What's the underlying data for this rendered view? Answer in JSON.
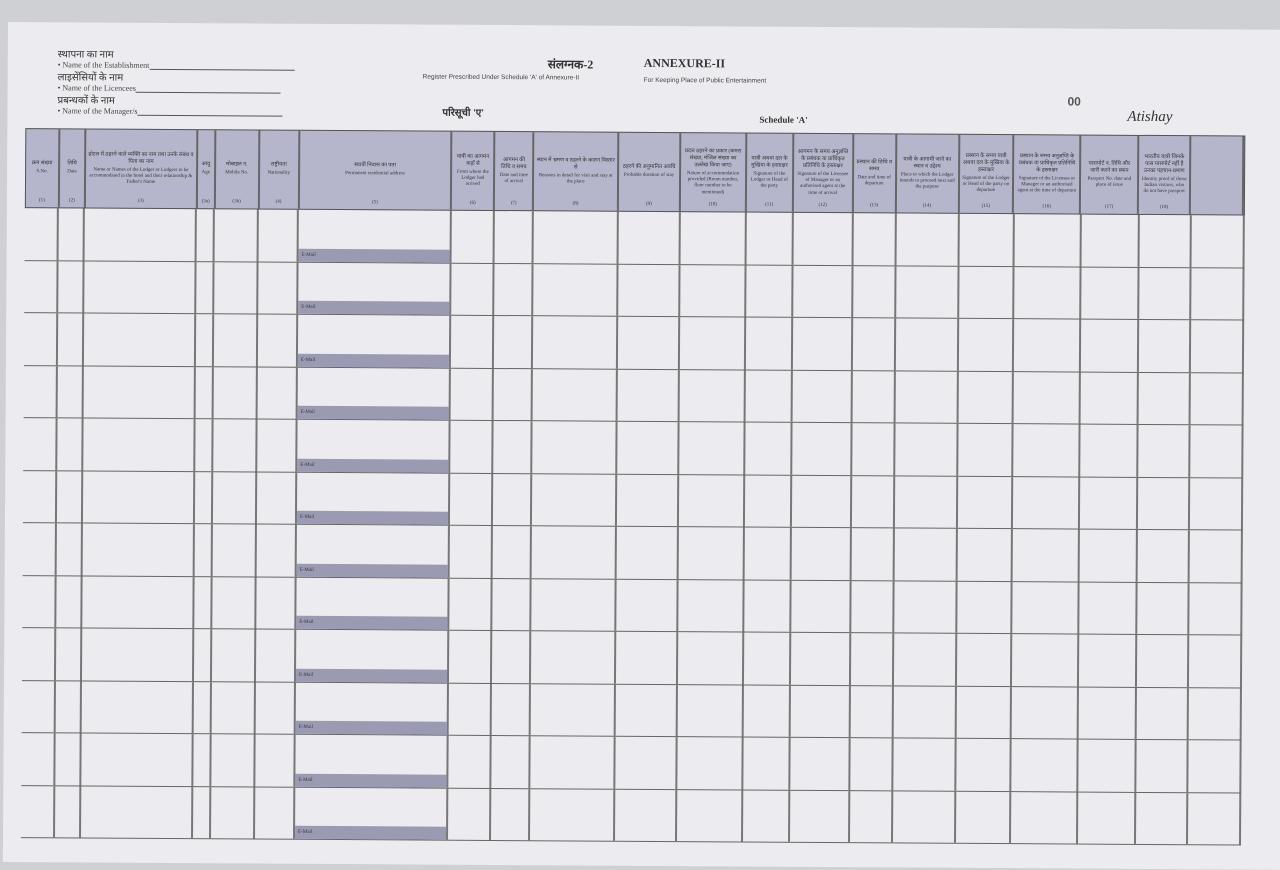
{
  "header": {
    "establishment_hi": "स्थापना का नाम",
    "establishment_en": "• Name of the Establishment",
    "licencees_hi": "लाइसेंसियों के नाम",
    "licencees_en": "• Name of the Licencees",
    "managers_hi": "प्रबन्धकों के नाम",
    "managers_en": "• Name of the Manager/s",
    "annexure_hi": "संलग्नक-2",
    "annexure_en": "ANNEXURE-II",
    "register_subtitle": "Register Prescribed Under Schedule 'A' of Annexure-II",
    "purpose_subtitle": "For Keeping Place of Public Entertainment",
    "schedule_hi": "परिसूची 'ए'",
    "schedule_en": "Schedule 'A'",
    "page_number": "00",
    "brand": "Atishay"
  },
  "columns": [
    {
      "hi": "क्रम संख्या",
      "en": "S.No.",
      "num": "(1)"
    },
    {
      "hi": "तिथि",
      "en": "Date",
      "num": "(2)"
    },
    {
      "hi": "होटल में ठहरने वाले व्यक्ति का नाम तथा उनके संबंध व पिता का नाम",
      "en": "Name or Names of the Lodger or Lodgers to be accommodated in the hotel and their relationship & Father's Name",
      "num": "(3)"
    },
    {
      "hi": "आयु",
      "en": "Age",
      "num": "(3a)"
    },
    {
      "hi": "मोबाइल न.",
      "en": "Mobile No.",
      "num": "(3b)"
    },
    {
      "hi": "राष्ट्रीयता",
      "en": "Nationality",
      "num": "(4)"
    },
    {
      "hi": "स्थायी निवास का पता",
      "en": "Permanent residential address",
      "num": "(5)"
    },
    {
      "hi": "यात्री का आगमन कहाँ से",
      "en": "From where the Lodger had arrived",
      "num": "(6)"
    },
    {
      "hi": "आगमन की तिथि व समय",
      "en": "Date and time of arrival",
      "num": "(7)"
    },
    {
      "hi": "स्थान में भ्रमण व ठहरने के कारण विस्तार से",
      "en": "Reasons in detail for visit and stay at the place",
      "num": "(8)"
    },
    {
      "hi": "ठहरने की अनुमानित अवधि",
      "en": "Probable duration of stay",
      "num": "(9)"
    },
    {
      "hi": "प्रदत्त ठहरने का प्रकार (कमरा संख्या, मंजिल संख्या का उल्लेख किया जाए)",
      "en": "Nature of accommodation provided (Room number, floor number to be mentioned)",
      "num": "(10)"
    },
    {
      "hi": "यात्री अथवा दल के मुखिया के हस्ताक्षर",
      "en": "Signature of the Lodger or Head of the party",
      "num": "(11)"
    },
    {
      "hi": "आगमन के समय अनुज्ञप्ति के प्रबंधक या प्राधिकृत प्रतिनिधि के हस्ताक्षर",
      "en": "Signature of the Licensee of Manager or an authorised agent at the time of arrival",
      "num": "(12)"
    },
    {
      "hi": "प्रस्थान की तिथि व समय",
      "en": "Date and time of departure",
      "num": "(13)"
    },
    {
      "hi": "यात्री के आगामी जाने का स्थान व उद्देश्य",
      "en": "Place to which the Lodger intends to proceed next and the purpose",
      "num": "(14)"
    },
    {
      "hi": "प्रस्थान के समय यात्री अथवा दल के मुखिया के हस्ताक्षर",
      "en": "Signature of the Lodger or Head of the party on departure",
      "num": "(15)"
    },
    {
      "hi": "प्रस्थान के समय अनुज्ञप्ति के प्रबंधक या प्राधिकृत प्रतिनिधि के हस्ताक्षर",
      "en": "Signature of the Licensee or Manager or an authorised agent at the time of departure",
      "num": "(16)"
    },
    {
      "hi": "पासपोर्ट न. तिथि और जारी करने का स्थान",
      "en": "Passport No. date and place of issue",
      "num": "(17)"
    },
    {
      "hi": "भारतीय यात्री जिनके पास पासपोर्ट नहीं है उनका पहचान-प्रमाण",
      "en": "Identity proof of those Indian visitors, who do not have passport",
      "num": "(18)"
    },
    {
      "hi": "",
      "en": "",
      "num": ""
    }
  ],
  "rows": [
    {
      "email_label": "E-Mail"
    },
    {
      "email_label": "E-Mail"
    },
    {
      "email_label": "E-Mail"
    },
    {
      "email_label": "E-Mail"
    },
    {
      "email_label": "E-Mail"
    },
    {
      "email_label": "E-Mail"
    },
    {
      "email_label": "E-Mail"
    },
    {
      "email_label": "E-Mail"
    },
    {
      "email_label": "E-Mail"
    },
    {
      "email_label": "E-Mail"
    },
    {
      "email_label": "E-Mail"
    },
    {
      "email_label": "E-Mail"
    }
  ],
  "colors": {
    "header_band": "#b5b6cc",
    "email_band": "#9a9bb3",
    "paper": "#ecebef"
  }
}
